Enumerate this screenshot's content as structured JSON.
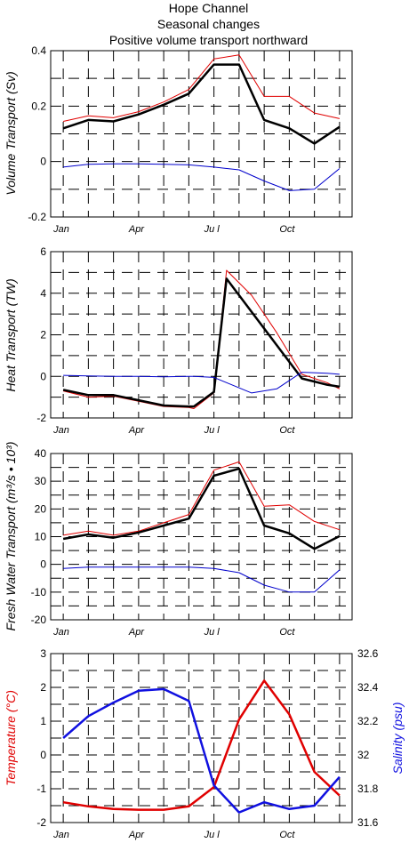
{
  "titles": {
    "line1": "Hope Channel",
    "line2": "Seasonal changes",
    "line3": "Positive volume transport northward"
  },
  "colors": {
    "red": "#e00000",
    "blue": "#0000cc",
    "black": "#000000",
    "temp": "#e00000",
    "sal": "#1010e0"
  },
  "chart_data": [
    {
      "type": "line",
      "ylabel": "Volume Transport (Sv)",
      "ylim": [
        -0.2,
        0.4
      ],
      "yticks": [
        -0.2,
        0,
        0.2,
        0.4
      ],
      "ytick_labels": [
        "-0.2",
        "0",
        "0.2",
        "0.4"
      ],
      "xlim": [
        0.5,
        12.5
      ],
      "x": [
        1,
        2,
        3,
        4,
        5,
        6,
        7,
        8,
        9,
        10,
        11,
        12
      ],
      "xtick_labels": [
        {
          "label": "Jan",
          "x": 1
        },
        {
          "label": "Apr",
          "x": 4
        },
        {
          "label": "Ju l",
          "x": 7
        },
        {
          "label": "Oct",
          "x": 10
        }
      ],
      "grid": true,
      "series": [
        {
          "color": "red",
          "width": 1,
          "values": [
            0.145,
            0.165,
            0.158,
            0.18,
            0.215,
            0.26,
            0.37,
            0.385,
            0.235,
            0.235,
            0.175,
            0.155
          ]
        },
        {
          "color": "black",
          "width": 2.5,
          "values": [
            0.12,
            0.15,
            0.145,
            0.17,
            0.205,
            0.245,
            0.35,
            0.35,
            0.15,
            0.12,
            0.065,
            0.125
          ]
        },
        {
          "color": "blue",
          "width": 1,
          "values": [
            -0.02,
            -0.01,
            -0.008,
            -0.008,
            -0.01,
            -0.012,
            -0.02,
            -0.03,
            -0.07,
            -0.105,
            -0.1,
            -0.025
          ]
        }
      ]
    },
    {
      "type": "line",
      "ylabel": "Heat Transport (TW)",
      "ylim": [
        -2,
        6
      ],
      "yticks": [
        -2,
        0,
        2,
        4,
        6
      ],
      "ytick_labels": [
        "-2",
        "0",
        "2",
        "4",
        "6"
      ],
      "xlim": [
        0.5,
        12.5
      ],
      "x": [
        1,
        2,
        3,
        4,
        5,
        6,
        6.2,
        7,
        7.5,
        8.5,
        9.5,
        10.5,
        11.5,
        12
      ],
      "xtick_labels": [
        {
          "label": "Jan",
          "x": 1
        },
        {
          "label": "Apr",
          "x": 4
        },
        {
          "label": "Ju l",
          "x": 7
        },
        {
          "label": "Oct",
          "x": 10
        }
      ],
      "grid": true,
      "series": [
        {
          "color": "red",
          "width": 1,
          "values": [
            -0.7,
            -1.0,
            -0.95,
            -1.2,
            -1.45,
            -1.5,
            -1.55,
            -0.8,
            5.1,
            3.9,
            2.1,
            0.1,
            -0.3,
            -0.6
          ]
        },
        {
          "color": "black",
          "width": 2.5,
          "values": [
            -0.65,
            -0.9,
            -0.9,
            -1.15,
            -1.4,
            -1.45,
            -1.45,
            -0.75,
            4.7,
            3.1,
            1.5,
            -0.1,
            -0.4,
            -0.5
          ]
        },
        {
          "color": "blue",
          "width": 1,
          "values": [
            0.05,
            0.02,
            0.0,
            0.0,
            -0.02,
            0.0,
            0.0,
            -0.05,
            -0.3,
            -0.8,
            -0.6,
            0.2,
            0.15,
            0.1
          ]
        }
      ]
    },
    {
      "type": "line",
      "ylabel": "Fresh Water Transport (m³/s • 10³)",
      "ylim": [
        -20,
        40
      ],
      "yticks": [
        -20,
        -10,
        0,
        10,
        20,
        30,
        40
      ],
      "ytick_labels": [
        "-20",
        "-10",
        "0",
        "10",
        "20",
        "30",
        "40"
      ],
      "xlim": [
        0.5,
        12.5
      ],
      "x": [
        1,
        2,
        3,
        4,
        5,
        6,
        7,
        8,
        9,
        10,
        11,
        12
      ],
      "xtick_labels": [
        {
          "label": "Jan",
          "x": 1
        },
        {
          "label": "Apr",
          "x": 4
        },
        {
          "label": "Ju l",
          "x": 7
        },
        {
          "label": "Oct",
          "x": 10
        }
      ],
      "grid": true,
      "series": [
        {
          "color": "red",
          "width": 1,
          "values": [
            10.5,
            12,
            10.5,
            12,
            15,
            18,
            34,
            37,
            21,
            21.5,
            15.5,
            12.5
          ]
        },
        {
          "color": "black",
          "width": 2.5,
          "values": [
            9.2,
            10.8,
            9.6,
            11.5,
            14,
            16.5,
            32,
            34.5,
            14,
            11.2,
            5.6,
            10.2
          ]
        },
        {
          "color": "blue",
          "width": 1,
          "values": [
            -1.5,
            -1,
            -1,
            -1,
            -1,
            -1,
            -1.5,
            -3,
            -7.5,
            -10,
            -10,
            -2
          ]
        }
      ]
    },
    {
      "type": "line",
      "ylabel": "Temperature (°C)",
      "ylabel_right": "Salinity (psu)",
      "ylim": [
        -2,
        3
      ],
      "yticks": [
        -2,
        -1,
        0,
        1,
        2,
        3
      ],
      "ytick_labels": [
        "-2",
        "-1",
        "0",
        "1",
        "2",
        "3"
      ],
      "ylim_right": [
        31.6,
        32.6
      ],
      "yticks_right": [
        31.6,
        31.8,
        32,
        32.2,
        32.4,
        32.6
      ],
      "ytick_labels_right": [
        "31.6",
        "31.8",
        "32",
        "32.2",
        "32.4",
        "32.6"
      ],
      "xlim": [
        0.5,
        12.5
      ],
      "x": [
        1,
        2,
        3,
        4,
        5,
        6,
        7,
        8,
        9,
        10,
        11,
        12
      ],
      "xtick_labels": [
        {
          "label": "Jan",
          "x": 1
        },
        {
          "label": "Apr",
          "x": 4
        },
        {
          "label": "Ju l",
          "x": 7
        },
        {
          "label": "Oct",
          "x": 10
        }
      ],
      "grid": true,
      "series": [
        {
          "color": "temp",
          "width": 2.5,
          "axis": "left",
          "values": [
            -1.4,
            -1.52,
            -1.6,
            -1.62,
            -1.62,
            -1.52,
            -0.95,
            1.05,
            2.2,
            1.2,
            -0.5,
            -1.2
          ]
        },
        {
          "color": "sal",
          "width": 2.5,
          "axis": "right",
          "values": [
            32.1,
            32.23,
            32.31,
            32.38,
            32.39,
            32.32,
            31.82,
            31.66,
            31.72,
            31.68,
            31.7,
            31.87
          ]
        }
      ]
    }
  ]
}
